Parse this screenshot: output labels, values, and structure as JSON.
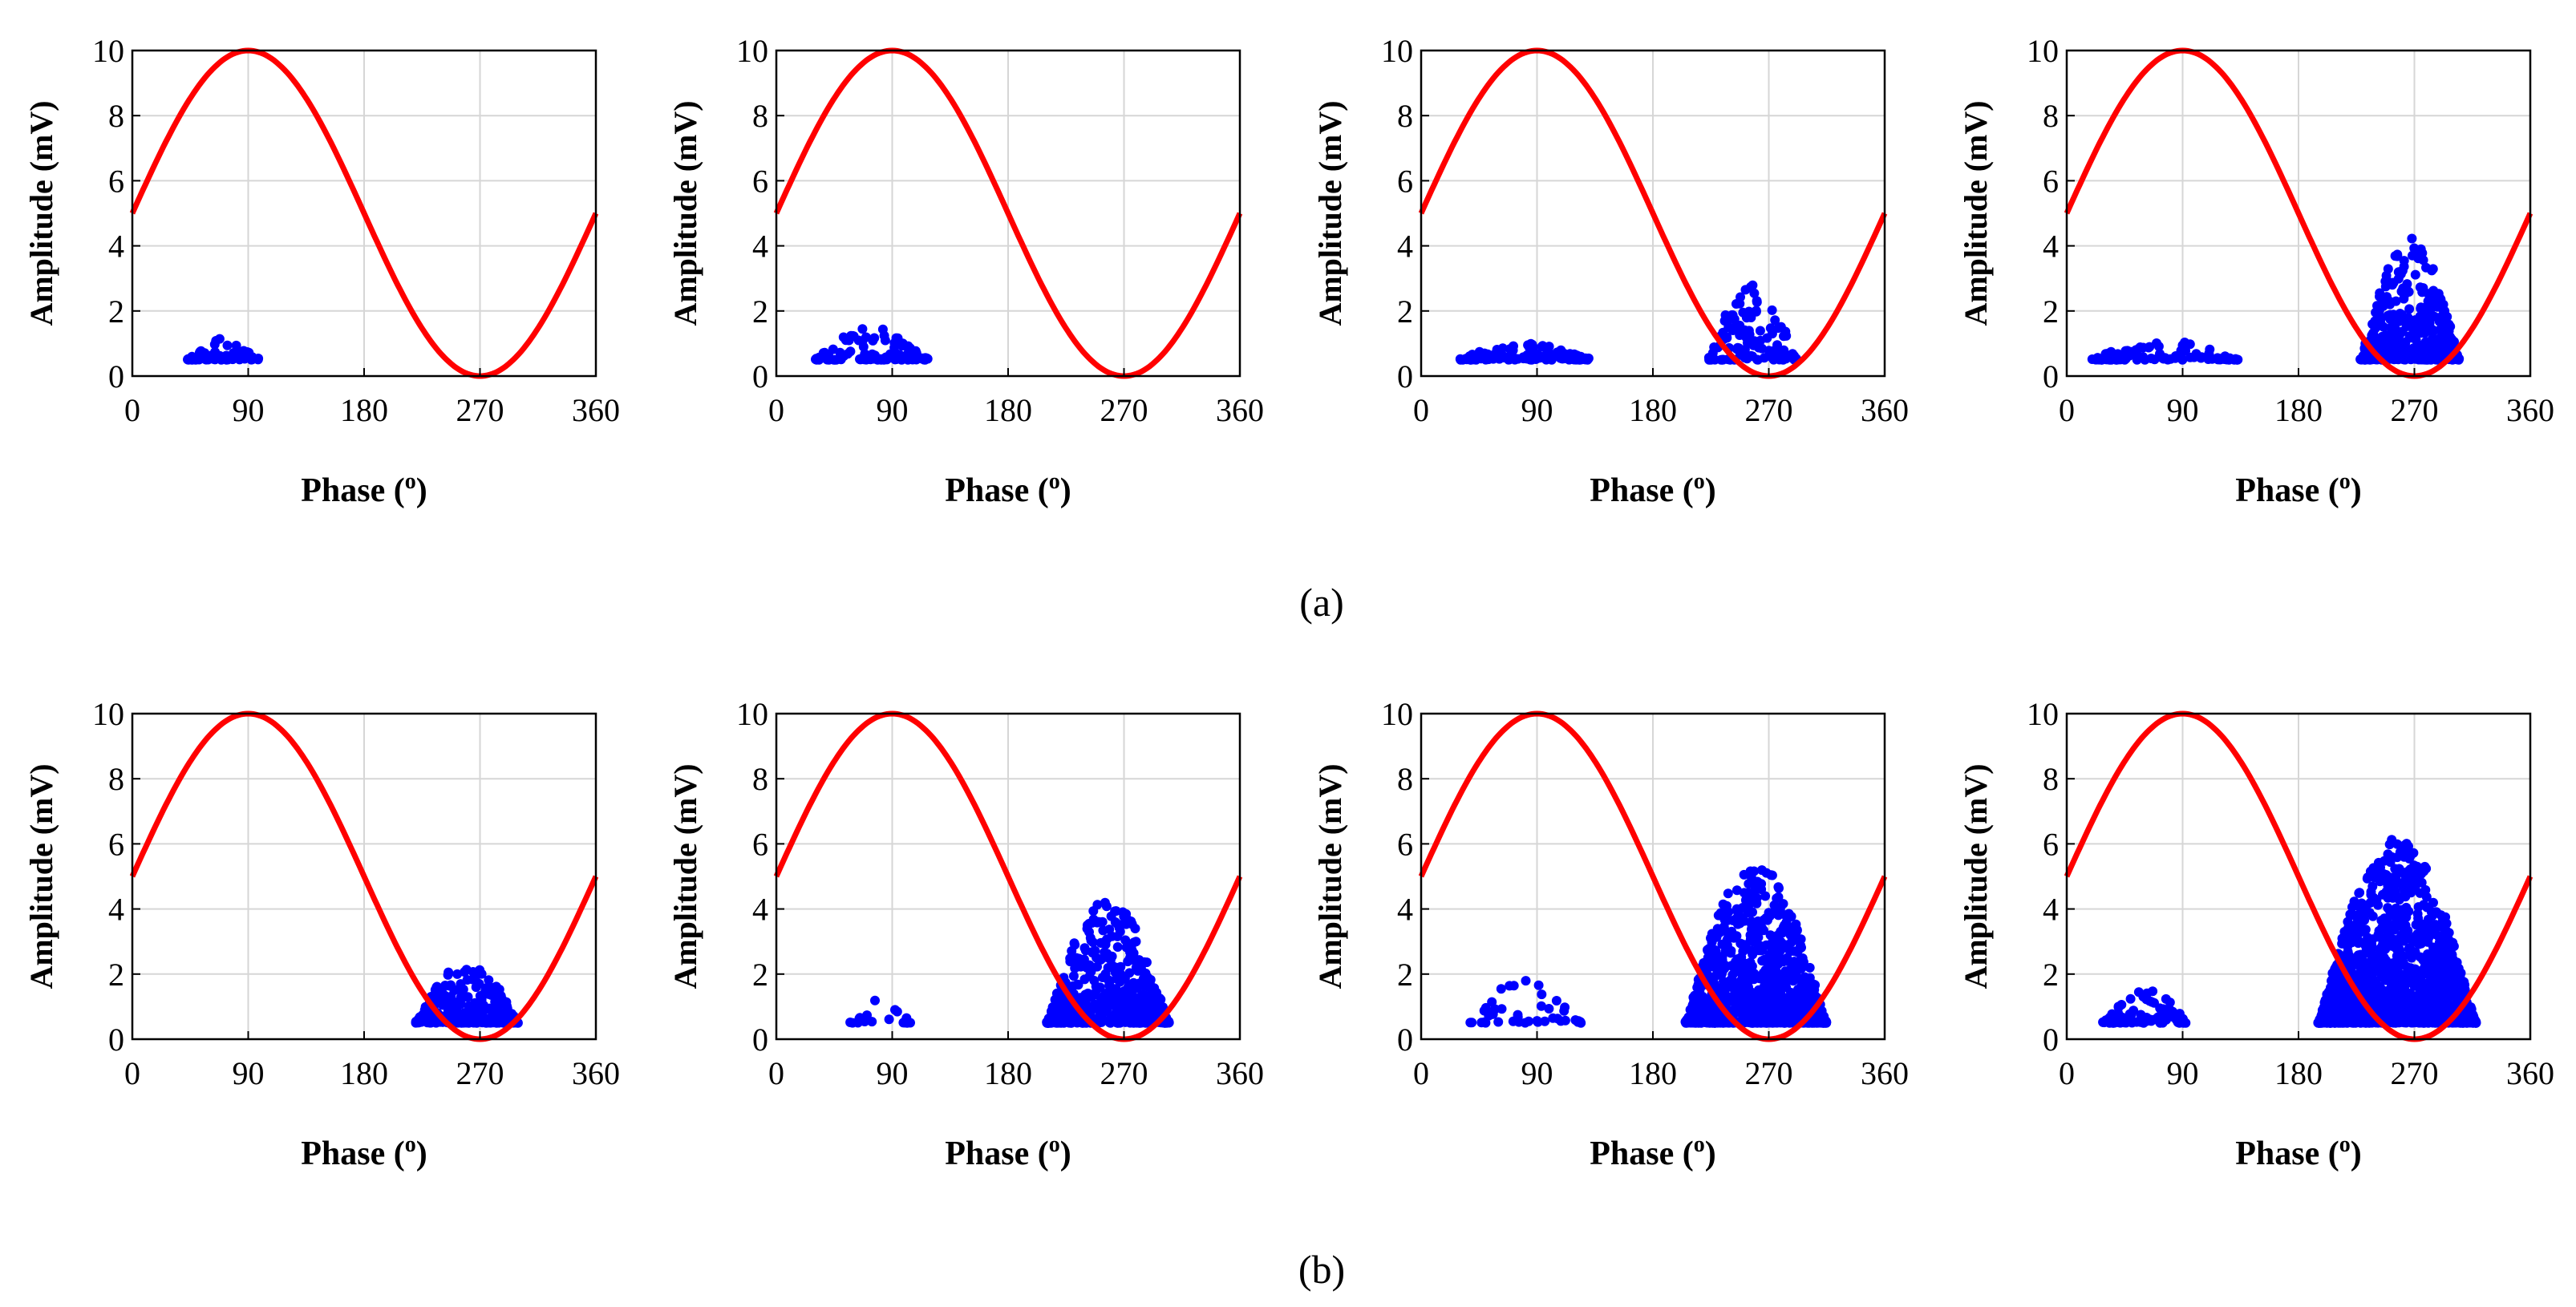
{
  "figure": {
    "panel_labels": [
      "(a)",
      "(b)"
    ]
  },
  "chart_data": [
    {
      "type": "scatter",
      "row": "a",
      "col": 1,
      "xlabel": "Phase (o)",
      "ylabel": "Amplitude (mV)",
      "xlim": [
        0,
        360
      ],
      "ylim": [
        0,
        10
      ],
      "xticks": [
        0,
        90,
        180,
        270,
        360
      ],
      "yticks": [
        0,
        2,
        4,
        6,
        8,
        10
      ],
      "grid": true,
      "series": [
        {
          "name": "reference sine",
          "type": "line",
          "color": "#ff0000",
          "function": "y = 5 + 5*sin(x deg)",
          "amplitude": 5,
          "offset": 5
        },
        {
          "name": "PD pulses",
          "type": "scatter",
          "color": "#0000ff",
          "clusters": [
            {
              "x_range": [
                42,
                98
              ],
              "y_min": 0.5,
              "y_max": 1.2,
              "count": 60
            }
          ]
        }
      ]
    },
    {
      "type": "scatter",
      "row": "a",
      "col": 2,
      "xlabel": "Phase (o)",
      "ylabel": "Amplitude (mV)",
      "xlim": [
        0,
        360
      ],
      "ylim": [
        0,
        10
      ],
      "xticks": [
        0,
        90,
        180,
        270,
        360
      ],
      "yticks": [
        0,
        2,
        4,
        6,
        8,
        10
      ],
      "grid": true,
      "series": [
        {
          "name": "reference sine",
          "type": "line",
          "color": "#ff0000",
          "function": "y = 5 + 5*sin(x deg)",
          "amplitude": 5,
          "offset": 5
        },
        {
          "name": "PD pulses",
          "type": "scatter",
          "color": "#0000ff",
          "clusters": [
            {
              "x_range": [
                30,
                118
              ],
              "y_min": 0.5,
              "y_max": 1.5,
              "count": 110
            }
          ]
        }
      ]
    },
    {
      "type": "scatter",
      "row": "a",
      "col": 3,
      "xlabel": "Phase (o)",
      "ylabel": "Amplitude (mV)",
      "xlim": [
        0,
        360
      ],
      "ylim": [
        0,
        10
      ],
      "xticks": [
        0,
        90,
        180,
        270,
        360
      ],
      "yticks": [
        0,
        2,
        4,
        6,
        8,
        10
      ],
      "grid": true,
      "series": [
        {
          "name": "reference sine",
          "type": "line",
          "color": "#ff0000",
          "function": "y = 5 + 5*sin(x deg)",
          "amplitude": 5,
          "offset": 5
        },
        {
          "name": "PD pulses",
          "type": "scatter",
          "color": "#0000ff",
          "clusters": [
            {
              "x_range": [
                28,
                132
              ],
              "y_min": 0.5,
              "y_max": 1.0,
              "count": 130
            },
            {
              "x_range": [
                222,
                292
              ],
              "y_min": 0.5,
              "y_max": 2.8,
              "count": 120
            }
          ]
        }
      ]
    },
    {
      "type": "scatter",
      "row": "a",
      "col": 4,
      "xlabel": "Phase (o)",
      "ylabel": "Amplitude (mV)",
      "xlim": [
        0,
        360
      ],
      "ylim": [
        0,
        10
      ],
      "xticks": [
        0,
        90,
        180,
        270,
        360
      ],
      "yticks": [
        0,
        2,
        4,
        6,
        8,
        10
      ],
      "grid": true,
      "series": [
        {
          "name": "reference sine",
          "type": "line",
          "color": "#ff0000",
          "function": "y = 5 + 5*sin(x deg)",
          "amplitude": 5,
          "offset": 5
        },
        {
          "name": "PD pulses",
          "type": "scatter",
          "color": "#0000ff",
          "clusters": [
            {
              "x_range": [
                18,
                135
              ],
              "y_min": 0.5,
              "y_max": 1.1,
              "count": 110
            },
            {
              "x_range": [
                228,
                305
              ],
              "y_min": 0.5,
              "y_max": 4.3,
              "count": 450
            }
          ]
        }
      ]
    },
    {
      "type": "scatter",
      "row": "b",
      "col": 1,
      "xlabel": "Phase (o)",
      "ylabel": "Amplitude (mV)",
      "xlim": [
        0,
        360
      ],
      "ylim": [
        0,
        10
      ],
      "xticks": [
        0,
        90,
        180,
        270,
        360
      ],
      "yticks": [
        0,
        2,
        4,
        6,
        8,
        10
      ],
      "grid": true,
      "series": [
        {
          "name": "reference sine",
          "type": "line",
          "color": "#ff0000",
          "function": "y = 5 + 5*sin(x deg)",
          "amplitude": 5,
          "offset": 5
        },
        {
          "name": "PD pulses",
          "type": "scatter",
          "color": "#0000ff",
          "clusters": [
            {
              "x_range": [
                220,
                300
              ],
              "y_min": 0.5,
              "y_max": 2.4,
              "count": 260
            }
          ]
        }
      ]
    },
    {
      "type": "scatter",
      "row": "b",
      "col": 2,
      "xlabel": "Phase (o)",
      "ylabel": "Amplitude (mV)",
      "xlim": [
        0,
        360
      ],
      "ylim": [
        0,
        10
      ],
      "xticks": [
        0,
        90,
        180,
        270,
        360
      ],
      "yticks": [
        0,
        2,
        4,
        6,
        8,
        10
      ],
      "grid": true,
      "series": [
        {
          "name": "reference sine",
          "type": "line",
          "color": "#ff0000",
          "function": "y = 5 + 5*sin(x deg)",
          "amplitude": 5,
          "offset": 5
        },
        {
          "name": "PD pulses",
          "type": "scatter",
          "color": "#0000ff",
          "clusters": [
            {
              "x_range": [
                48,
                105
              ],
              "y_min": 0.5,
              "y_max": 1.5,
              "count": 18
            },
            {
              "x_range": [
                210,
                305
              ],
              "y_min": 0.5,
              "y_max": 4.3,
              "count": 600
            }
          ]
        }
      ]
    },
    {
      "type": "scatter",
      "row": "b",
      "col": 3,
      "xlabel": "Phase (o)",
      "ylabel": "Amplitude (mV)",
      "xlim": [
        0,
        360
      ],
      "ylim": [
        0,
        10
      ],
      "xticks": [
        0,
        90,
        180,
        270,
        360
      ],
      "yticks": [
        0,
        2,
        4,
        6,
        8,
        10
      ],
      "grid": true,
      "series": [
        {
          "name": "reference sine",
          "type": "line",
          "color": "#ff0000",
          "function": "y = 5 + 5*sin(x deg)",
          "amplitude": 5,
          "offset": 5
        },
        {
          "name": "PD pulses",
          "type": "scatter",
          "color": "#0000ff",
          "clusters": [
            {
              "x_range": [
                38,
                125
              ],
              "y_min": 0.5,
              "y_max": 2.2,
              "count": 45
            },
            {
              "x_range": [
                205,
                315
              ],
              "y_min": 0.5,
              "y_max": 5.4,
              "count": 1100
            }
          ]
        }
      ]
    },
    {
      "type": "scatter",
      "row": "b",
      "col": 4,
      "xlabel": "Phase (o)",
      "ylabel": "Amplitude (mV)",
      "xlim": [
        0,
        360
      ],
      "ylim": [
        0,
        10
      ],
      "xticks": [
        0,
        90,
        180,
        270,
        360
      ],
      "yticks": [
        0,
        2,
        4,
        6,
        8,
        10
      ],
      "grid": true,
      "series": [
        {
          "name": "reference sine",
          "type": "line",
          "color": "#ff0000",
          "function": "y = 5 + 5*sin(x deg)",
          "amplitude": 5,
          "offset": 5
        },
        {
          "name": "PD pulses",
          "type": "scatter",
          "color": "#0000ff",
          "clusters": [
            {
              "x_range": [
                28,
                95
              ],
              "y_min": 0.5,
              "y_max": 1.5,
              "count": 90
            },
            {
              "x_range": [
                195,
                318
              ],
              "y_min": 0.5,
              "y_max": 6.2,
              "count": 1600
            }
          ]
        }
      ]
    }
  ]
}
